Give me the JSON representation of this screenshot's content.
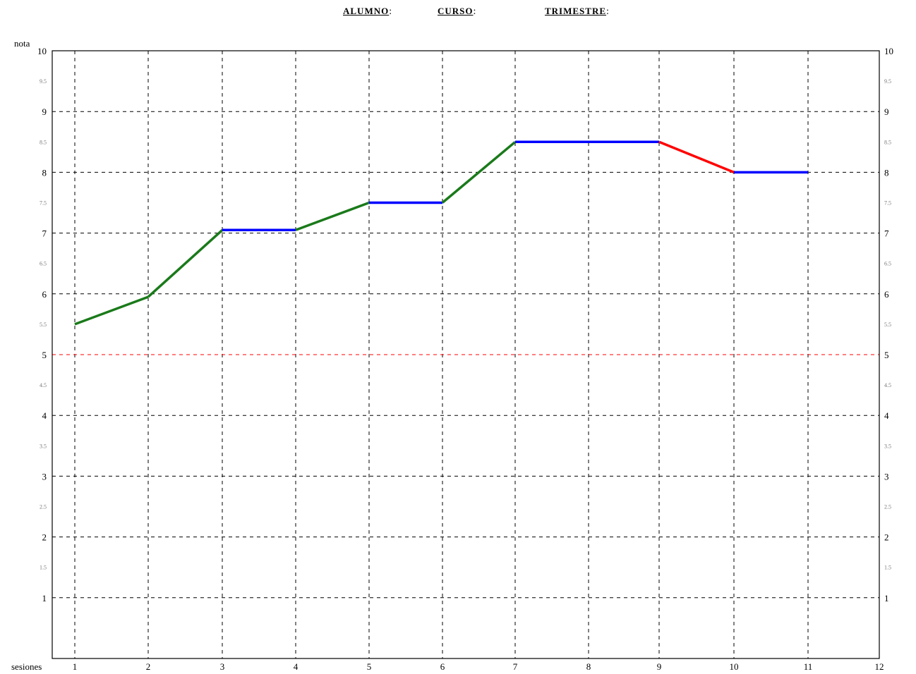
{
  "header": {
    "alumno_label": "ALUMNO",
    "curso_label": "CURSO",
    "trimestre_label": "TRIMESTRE",
    "colon": ":"
  },
  "chart_data": {
    "type": "line",
    "title": "",
    "xlabel": "sesiones",
    "ylabel": "nota",
    "xlim": [
      0.7,
      12
    ],
    "ylim": [
      0,
      10
    ],
    "x_ticks": [
      "1",
      "2",
      "3",
      "4",
      "5",
      "6",
      "7",
      "8",
      "9",
      "10",
      "11",
      "12"
    ],
    "y_major_ticks": [
      1,
      2,
      3,
      4,
      5,
      6,
      7,
      8,
      9,
      10
    ],
    "y_minor_ticks": [
      1.5,
      2.5,
      3.5,
      4.5,
      5.5,
      6.5,
      7.5,
      8.5,
      9.5
    ],
    "grid": true,
    "pass_mark": {
      "y": 5,
      "color": "#ff0000"
    },
    "series": [
      {
        "x": [
          1,
          2,
          3,
          4,
          5,
          6,
          7,
          8,
          9,
          10,
          11
        ],
        "values": [
          5.5,
          5.95,
          7.05,
          7.05,
          7.5,
          7.5,
          8.5,
          8.5,
          8.5,
          8.0,
          8.0
        ]
      }
    ],
    "segment_colors": {
      "up": "#1a7a1a",
      "flat": "#0000ff",
      "down": "#ff0000"
    }
  }
}
